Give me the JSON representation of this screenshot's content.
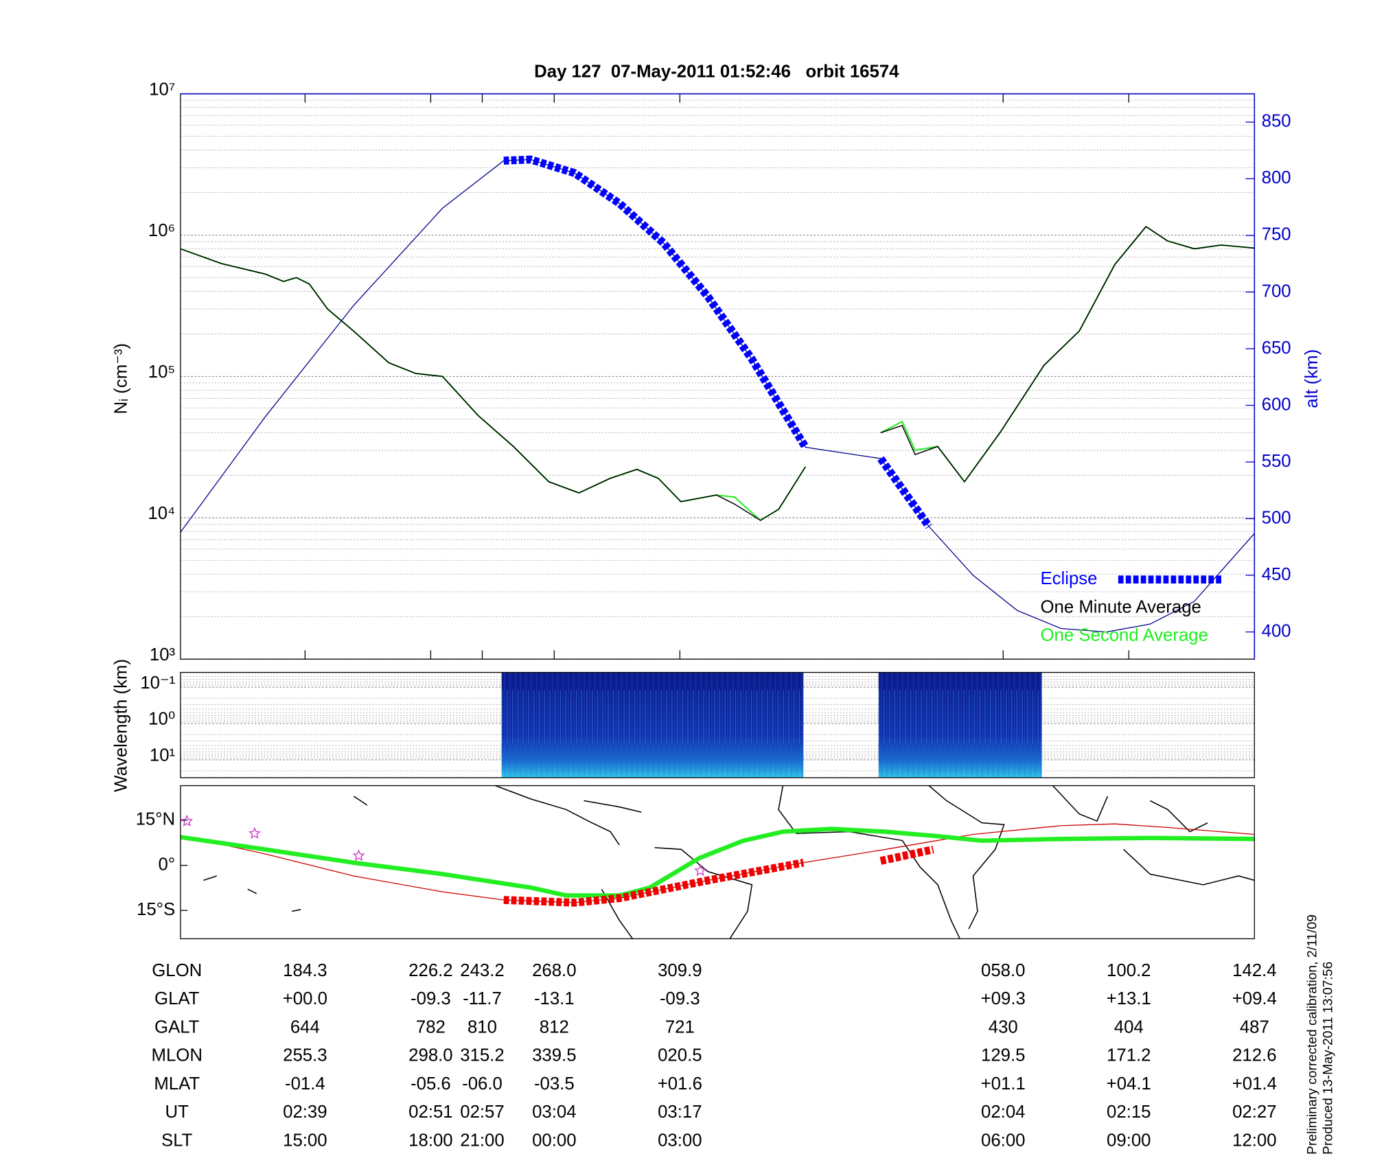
{
  "chart_data": [
    {
      "type": "line",
      "title": "Day 127  07-May-2011 01:52:46   orbit 16574",
      "ylabel": "Nᵢ (cm⁻³)",
      "y2label": "alt (km)",
      "yscale": "log",
      "grid": true,
      "legend": "lower right",
      "xlim": [
        0,
        100
      ],
      "xticks": [
        11.6,
        23.3,
        28.1,
        34.8,
        46.5,
        76.6,
        88.3,
        100
      ],
      "ylim": [
        1000,
        10000000
      ],
      "yticks": [
        {
          "value": 1000,
          "label": "10³"
        },
        {
          "value": 10000,
          "label": "10⁴"
        },
        {
          "value": 100000,
          "label": "10⁵"
        },
        {
          "value": 1000000,
          "label": "10⁶"
        },
        {
          "value": 10000000,
          "label": "10⁷"
        }
      ],
      "y2lim": [
        376,
        875
      ],
      "y2ticks": [
        400,
        450,
        500,
        550,
        600,
        650,
        700,
        750,
        800,
        850
      ],
      "series": [
        {
          "name": "One Second Average",
          "color": "#22ee22",
          "x": [
            0,
            3.8,
            7.9,
            9.6,
            10.8,
            12.0,
            13.7,
            16.1,
            19.4,
            21.9,
            24.4,
            27.7,
            31.0,
            34.3,
            37.1,
            40.0,
            42.5,
            44.5,
            46.6,
            49.9,
            51.6,
            54.0,
            55.7,
            58.2,
            null,
            65.2,
            67.2,
            68.4,
            70.5,
            73.0,
            76.3,
            80.4,
            83.7,
            87.0,
            89.9,
            91.9,
            94.4,
            96.9,
            100
          ],
          "values": [
            800000,
            630000,
            530000,
            470000,
            500000,
            450000,
            300000,
            210000,
            125000,
            105000,
            100000,
            53000,
            32000,
            18000,
            15000,
            19000,
            22000,
            19000,
            13000,
            14500,
            14000,
            9600,
            11500,
            23000,
            null,
            40000,
            48000,
            30000,
            32000,
            18000,
            40000,
            120000,
            210000,
            620000,
            1150000,
            910000,
            800000,
            850000,
            810000
          ]
        },
        {
          "name": "One Minute Average",
          "color": "#000000",
          "x": [
            0,
            3.8,
            7.9,
            9.6,
            10.8,
            12.0,
            13.7,
            16.1,
            19.4,
            21.9,
            24.4,
            27.7,
            31.0,
            34.3,
            37.1,
            40.0,
            42.5,
            44.5,
            46.6,
            49.9,
            51.6,
            54.0,
            55.7,
            58.2,
            null,
            65.2,
            67.2,
            68.4,
            70.5,
            73.0,
            76.3,
            80.4,
            83.7,
            87.0,
            89.9,
            91.9,
            94.4,
            96.9,
            100
          ],
          "values": [
            800000,
            630000,
            530000,
            470000,
            500000,
            450000,
            300000,
            210000,
            125000,
            105000,
            100000,
            53000,
            32000,
            18000,
            15000,
            19000,
            22000,
            19000,
            13000,
            14500,
            12500,
            9600,
            11500,
            23000,
            null,
            40000,
            45000,
            28000,
            32000,
            18000,
            40000,
            120000,
            210000,
            620000,
            1150000,
            910000,
            800000,
            850000,
            810000
          ]
        },
        {
          "axis": "y2",
          "color": "#00008b",
          "x": [
            0,
            7.9,
            16.1,
            24.4,
            30.1,
            32.6,
            36.7,
            40.9,
            45.0,
            49.1,
            53.2,
            58.2,
            65.2,
            69.7,
            73.8,
            77.9,
            82.0,
            86.2,
            90.3,
            94.4,
            100
          ],
          "values": [
            488,
            590,
            688,
            774,
            816,
            817,
            805,
            778,
            743,
            696,
            641,
            563,
            553,
            493,
            450,
            419,
            403,
            400,
            407,
            427,
            487
          ]
        },
        {
          "name": "Eclipse",
          "axis": "y2",
          "color": "#0000ff",
          "style": "dashed",
          "x": [
            30.1,
            32.6,
            36.7,
            40.9,
            45.0,
            49.1,
            53.2,
            58.2,
            null,
            65.2,
            69.7
          ],
          "values": [
            816,
            817,
            805,
            778,
            743,
            696,
            641,
            563,
            null,
            553,
            493
          ]
        }
      ]
    },
    {
      "type": "heatmap",
      "ylabel": "Wavelength (km)",
      "yscale": "log",
      "grid": true,
      "xlim": [
        0,
        100
      ],
      "ylim": [
        31,
        0.039
      ],
      "yticks": [
        {
          "value": 0.1,
          "label": "10⁻¹"
        },
        {
          "value": 1,
          "label": "10⁰"
        },
        {
          "value": 10,
          "label": "10¹"
        }
      ],
      "intervals": [
        [
          29.9,
          58.0
        ],
        [
          65.0,
          80.2
        ]
      ]
    },
    {
      "type": "map",
      "xlim": [
        0,
        100
      ],
      "ylim": [
        -24.4,
        26.5
      ],
      "yticks": [
        {
          "value": 15,
          "label": "15°N"
        },
        {
          "value": 0,
          "label": "0°"
        },
        {
          "value": -15,
          "label": "15°S"
        }
      ],
      "series": [
        {
          "color": "#cc0000",
          "width": 1,
          "x": [
            0,
            7.9,
            16.1,
            24.4,
            30.1,
            36.7,
            40.9,
            49.1,
            58.0,
            65.6,
            73.8,
            82.0,
            87.0,
            91.9,
            100
          ],
          "values": [
            10,
            3.8,
            -3.5,
            -8.8,
            -11.5,
            -12.4,
            -10.9,
            -5,
            0.9,
            5.3,
            10.3,
            13.2,
            13.8,
            12.6,
            10.3
          ]
        },
        {
          "color": "#22ee22",
          "width": 5,
          "x": [
            0,
            7.9,
            16.1,
            24.4,
            32.6,
            35.9,
            40.9,
            43.7,
            48.3,
            52.4,
            56.1,
            60.6,
            65.6,
            70.5,
            74.6,
            82.0,
            90.3,
            100
          ],
          "values": [
            9.4,
            5.3,
            0.9,
            -2.9,
            -7.4,
            -10,
            -10,
            -7.4,
            2.4,
            8.2,
            11.2,
            12.1,
            11.2,
            9.7,
            8.2,
            8.8,
            9.1,
            8.8
          ]
        },
        {
          "color": "#ee0000",
          "width": 9,
          "style": "dashed",
          "x": [
            30.1,
            36.7,
            40.9,
            49.1,
            58.0,
            null,
            65.2,
            70.1
          ],
          "values": [
            -11.5,
            -12.4,
            -10.9,
            -5,
            0.9,
            null,
            1.5,
            5.3
          ]
        }
      ],
      "markers": {
        "color": "#cc33cc",
        "x": [
          0.6,
          6.9,
          16.6,
          48.4
        ],
        "values": [
          14.7,
          10.6,
          3.2,
          -1.8
        ]
      }
    }
  ],
  "table": {
    "rows": [
      {
        "label": "GLON",
        "values": [
          "184.3",
          "226.2",
          "243.2",
          "268.0",
          "309.9",
          "058.0",
          "100.2",
          "142.4"
        ]
      },
      {
        "label": "GLAT",
        "values": [
          "+00.0",
          "-09.3",
          "-11.7",
          "-13.1",
          "-09.3",
          "+09.3",
          "+13.1",
          "+09.4"
        ]
      },
      {
        "label": "GALT",
        "values": [
          "644",
          "782",
          "810",
          "812",
          "721",
          "430",
          "404",
          "487"
        ]
      },
      {
        "label": "MLON",
        "values": [
          "255.3",
          "298.0",
          "315.2",
          "339.5",
          "020.5",
          "129.5",
          "171.2",
          "212.6"
        ]
      },
      {
        "label": "MLAT",
        "values": [
          "-01.4",
          "-05.6",
          "-06.0",
          "-03.5",
          "+01.6",
          "+01.1",
          "+04.1",
          "+01.4"
        ]
      },
      {
        "label": "UT",
        "values": [
          "02:39",
          "02:51",
          "02:57",
          "03:04",
          "03:17",
          "02:04",
          "02:15",
          "02:27"
        ]
      },
      {
        "label": "SLT",
        "values": [
          "15:00",
          "18:00",
          "21:00",
          "00:00",
          "03:00",
          "06:00",
          "09:00",
          "12:00"
        ]
      }
    ]
  },
  "notes": [
    "Preliminary corrected calibration, 2/11/09",
    "Produced 13-May-2011 13:07:56"
  ]
}
